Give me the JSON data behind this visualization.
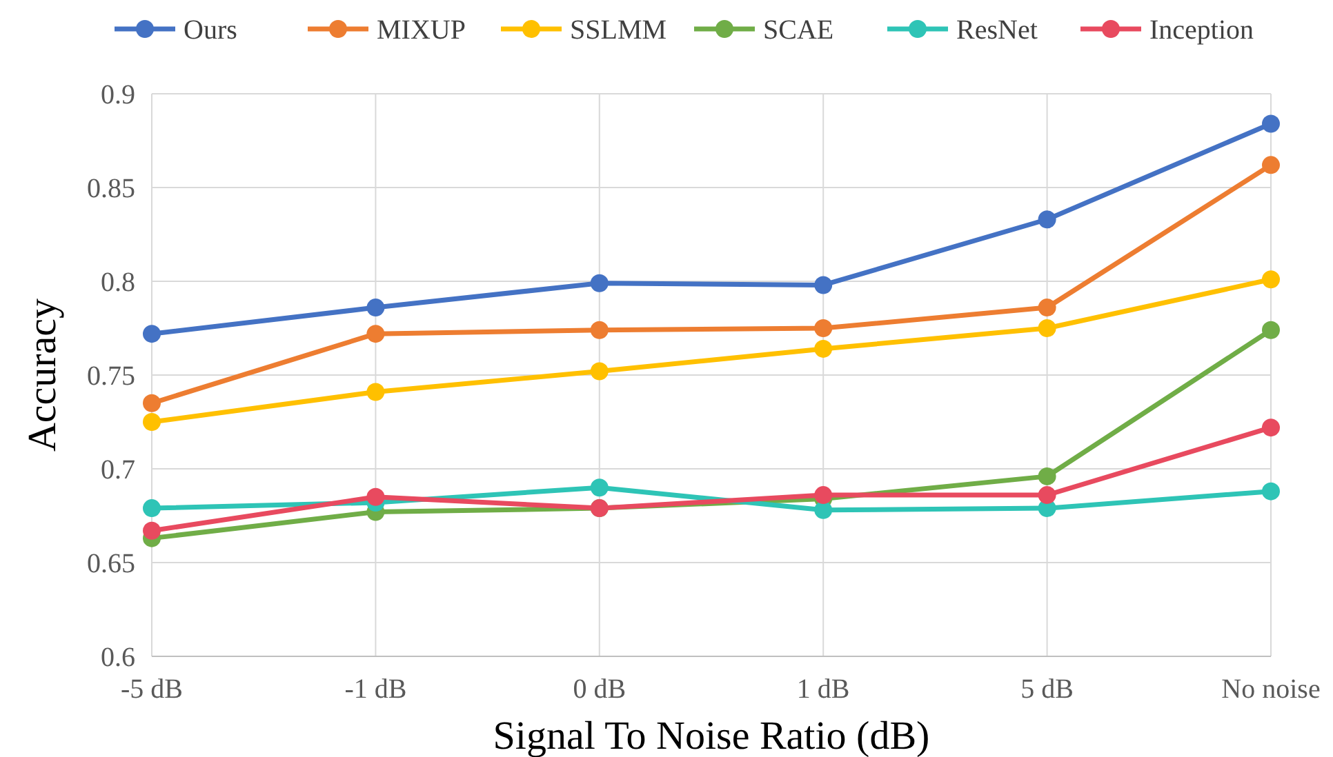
{
  "chart_data": {
    "type": "line",
    "xlabel": "Signal To Noise Ratio (dB)",
    "ylabel": "Accuracy",
    "categories": [
      "-5 dB",
      "-1 dB",
      "0 dB",
      "1 dB",
      "5 dB",
      "No noise"
    ],
    "ylim": [
      0.6,
      0.9
    ],
    "yticks": [
      0.6,
      0.65,
      0.7,
      0.75,
      0.8,
      0.85,
      0.9
    ],
    "grid": true,
    "legend": "top",
    "marker": "circle",
    "line_style": "solid",
    "series": [
      {
        "name": "Ours",
        "color": "#4472c4",
        "values": [
          0.772,
          0.786,
          0.799,
          0.798,
          0.833,
          0.884
        ]
      },
      {
        "name": "MIXUP",
        "color": "#ed7d31",
        "values": [
          0.735,
          0.772,
          0.774,
          0.775,
          0.786,
          0.862
        ]
      },
      {
        "name": "SSLMM",
        "color": "#ffc000",
        "values": [
          0.725,
          0.741,
          0.752,
          0.764,
          0.775,
          0.801
        ]
      },
      {
        "name": "SCAE",
        "color": "#70ad47",
        "values": [
          0.663,
          0.677,
          0.679,
          0.684,
          0.696,
          0.774
        ]
      },
      {
        "name": "ResNet",
        "color": "#2ec4b6",
        "values": [
          0.679,
          0.682,
          0.69,
          0.678,
          0.679,
          0.688
        ]
      },
      {
        "name": "Inception",
        "color": "#e84a5f",
        "values": [
          0.667,
          0.685,
          0.679,
          0.686,
          0.686,
          0.722
        ]
      }
    ]
  }
}
